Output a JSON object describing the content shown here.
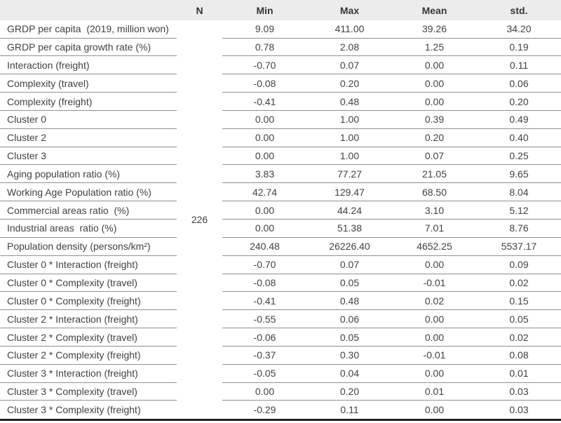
{
  "table": {
    "columns": [
      "",
      "N",
      "Min",
      "Max",
      "Mean",
      "std."
    ],
    "n_value": "226",
    "rows": [
      {
        "label": "GRDP per capita  (2019, million won)",
        "min": "9.09",
        "max": "411.00",
        "mean": "39.26",
        "std": "34.20"
      },
      {
        "label": "GRDP per capita growth rate (%)",
        "min": "0.78",
        "max": "2.08",
        "mean": "1.25",
        "std": "0.19"
      },
      {
        "label": "Interaction (freight)",
        "min": "-0.70",
        "max": "0.07",
        "mean": "0.00",
        "std": "0.11"
      },
      {
        "label": "Complexity (travel)",
        "min": "-0.08",
        "max": "0.20",
        "mean": "0.00",
        "std": "0.06"
      },
      {
        "label": "Complexity (freight)",
        "min": "-0.41",
        "max": "0.48",
        "mean": "0.00",
        "std": "0.20"
      },
      {
        "label": "Cluster 0",
        "min": "0.00",
        "max": "1.00",
        "mean": "0.39",
        "std": "0.49"
      },
      {
        "label": "Cluster 2",
        "min": "0.00",
        "max": "1.00",
        "mean": "0.20",
        "std": "0.40"
      },
      {
        "label": "Cluster 3",
        "min": "0.00",
        "max": "1.00",
        "mean": "0.07",
        "std": "0.25"
      },
      {
        "label": "Aging population ratio (%)",
        "min": "3.83",
        "max": "77.27",
        "mean": "21.05",
        "std": "9.65"
      },
      {
        "label": "Working Age Population ratio (%)",
        "min": "42.74",
        "max": "129.47",
        "mean": "68.50",
        "std": "8.04"
      },
      {
        "label": "Commercial areas ratio  (%)",
        "min": "0.00",
        "max": "44.24",
        "mean": "3.10",
        "std": "5.12"
      },
      {
        "label": "Industrial areas  ratio (%)",
        "min": "0.00",
        "max": "51.38",
        "mean": "7.01",
        "std": "8.76"
      },
      {
        "label": "Population density (persons/km²)",
        "min": "240.48",
        "max": "26226.40",
        "mean": "4652.25",
        "std": "5537.17"
      },
      {
        "label": "Cluster 0 * Interaction (freight)",
        "min": "-0.70",
        "max": "0.07",
        "mean": "0.00",
        "std": "0.09"
      },
      {
        "label": "Cluster 0 * Complexity (travel)",
        "min": "-0.08",
        "max": "0.05",
        "mean": "-0.01",
        "std": "0.02"
      },
      {
        "label": "Cluster 0 * Complexity (freight)",
        "min": "-0.41",
        "max": "0.48",
        "mean": "0.02",
        "std": "0.15"
      },
      {
        "label": "Cluster 2 * Interaction (freight)",
        "min": "-0.55",
        "max": "0.06",
        "mean": "0.00",
        "std": "0.05"
      },
      {
        "label": "Cluster 2 * Complexity (travel)",
        "min": "-0.06",
        "max": "0.05",
        "mean": "0.00",
        "std": "0.02"
      },
      {
        "label": "Cluster 2 * Complexity (freight)",
        "min": "-0.37",
        "max": "0.30",
        "mean": "-0.01",
        "std": "0.08"
      },
      {
        "label": "Cluster 3 * Interaction (freight)",
        "min": "-0.05",
        "max": "0.04",
        "mean": "0.00",
        "std": "0.01"
      },
      {
        "label": "Cluster 3 * Complexity (travel)",
        "min": "0.00",
        "max": "0.20",
        "mean": "0.01",
        "std": "0.03"
      },
      {
        "label": "Cluster 3 * Complexity (freight)",
        "min": "-0.29",
        "max": "0.11",
        "mean": "0.00",
        "std": "0.03"
      }
    ],
    "colors": {
      "header_bg": "#ececec",
      "row_line": "#909090",
      "bottom_rule": "#1f1f1f",
      "text": "#414141"
    }
  }
}
